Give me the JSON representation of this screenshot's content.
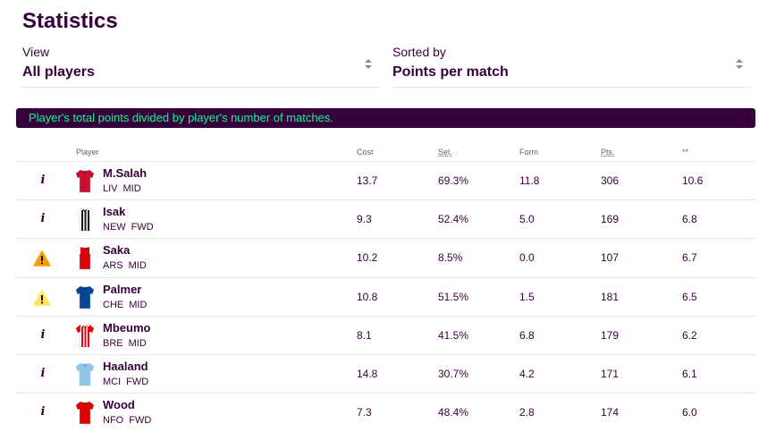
{
  "page": {
    "title": "Statistics"
  },
  "filters": {
    "view": {
      "label": "View",
      "value": "All players"
    },
    "sort": {
      "label": "Sorted by",
      "value": "Points per match"
    }
  },
  "banner": "Player's total points divided by player's number of matches.",
  "table": {
    "headers": {
      "player": "Player",
      "cost": "Cost",
      "sel": "Sel.",
      "form": "Form",
      "pts": "Pts.",
      "ppm": "**"
    },
    "rows": [
      {
        "status_icon": "info-icon",
        "name": "M.Salah",
        "team": "LIV",
        "pos": "MID",
        "cost": "13.7",
        "sel": "69.3%",
        "form": "11.8",
        "pts": "306",
        "ppm": "10.6",
        "shirt": {
          "body": "#c8102e",
          "sleeve": "#c8102e",
          "stripes": "none",
          "accent": "#8b0a1f"
        }
      },
      {
        "status_icon": "info-icon",
        "name": "Isak",
        "team": "NEW",
        "pos": "FWD",
        "cost": "9.3",
        "sel": "52.4%",
        "form": "5.0",
        "pts": "169",
        "ppm": "6.8",
        "shirt": {
          "body": "#ffffff",
          "sleeve": "#ffffff",
          "stripes": "#1a1a1a",
          "accent": "#1a1a1a"
        }
      },
      {
        "status_icon": "warning-icon",
        "name": "Saka",
        "team": "ARS",
        "pos": "MID",
        "cost": "10.2",
        "sel": "8.5%",
        "form": "0.0",
        "pts": "107",
        "ppm": "6.7",
        "shirt": {
          "body": "#db0007",
          "sleeve": "#ffffff",
          "stripes": "none",
          "accent": "#9c0005"
        }
      },
      {
        "status_icon": "warning-icon-light",
        "name": "Palmer",
        "team": "CHE",
        "pos": "MID",
        "cost": "10.8",
        "sel": "51.5%",
        "form": "1.5",
        "pts": "181",
        "ppm": "6.5",
        "shirt": {
          "body": "#034694",
          "sleeve": "#034694",
          "stripes": "none",
          "accent": "#022a5c"
        }
      },
      {
        "status_icon": "info-icon",
        "name": "Mbeumo",
        "team": "BRE",
        "pos": "MID",
        "cost": "8.1",
        "sel": "41.5%",
        "form": "6.8",
        "pts": "179",
        "ppm": "6.2",
        "shirt": {
          "body": "#ffffff",
          "sleeve": "#e30613",
          "stripes": "#e30613",
          "accent": "#e30613"
        }
      },
      {
        "status_icon": "info-icon",
        "name": "Haaland",
        "team": "MCI",
        "pos": "FWD",
        "cost": "14.8",
        "sel": "30.7%",
        "form": "4.2",
        "pts": "171",
        "ppm": "6.1",
        "shirt": {
          "body": "#8ec5ea",
          "sleeve": "#8ec5ea",
          "stripes": "none",
          "accent": "#5a9ccf"
        }
      },
      {
        "status_icon": "info-icon",
        "name": "Wood",
        "team": "NFO",
        "pos": "FWD",
        "cost": "7.3",
        "sel": "48.4%",
        "form": "2.8",
        "pts": "174",
        "ppm": "6.0",
        "shirt": {
          "body": "#dd0000",
          "sleeve": "#dd0000",
          "stripes": "none",
          "accent": "#9a0000"
        }
      }
    ]
  },
  "colors": {
    "brand_purple": "#37003c",
    "banner_text": "#00ff87",
    "warning_orange": "#f5a000",
    "warning_yellow": "#ffe65b"
  }
}
